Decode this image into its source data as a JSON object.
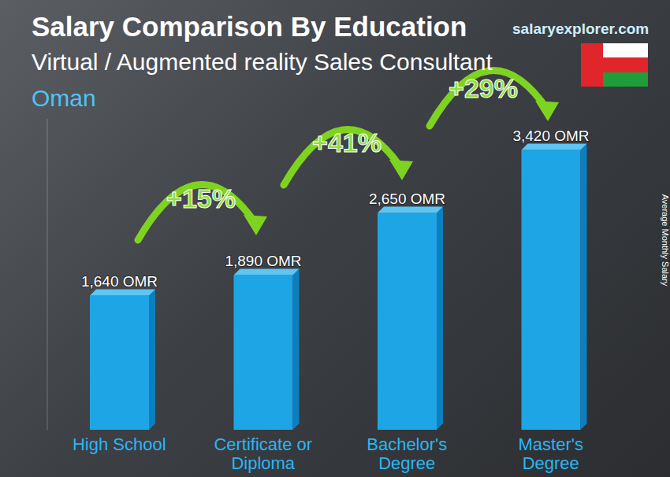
{
  "chart_data": {
    "type": "bar",
    "title": "Salary Comparison By Education",
    "subtitle": "Virtual / Augmented reality Sales Consultant",
    "location": "Oman",
    "source": "salaryexplorer.com",
    "y_label": "Average Monthly Salary",
    "categories": [
      "High School",
      "Certificate or Diploma",
      "Bachelor's Degree",
      "Master's Degree"
    ],
    "values": [
      1640,
      1890,
      2650,
      3420
    ],
    "value_labels": [
      "1,640 OMR",
      "1,890 OMR",
      "2,650 OMR",
      "3,420 OMR"
    ],
    "annotations": [
      "+15%",
      "+41%",
      "+29%"
    ],
    "color": "#1ea5e6",
    "ylim": [
      0,
      3800
    ],
    "grid": false,
    "data_labels": true,
    "tick_labels": "x"
  }
}
